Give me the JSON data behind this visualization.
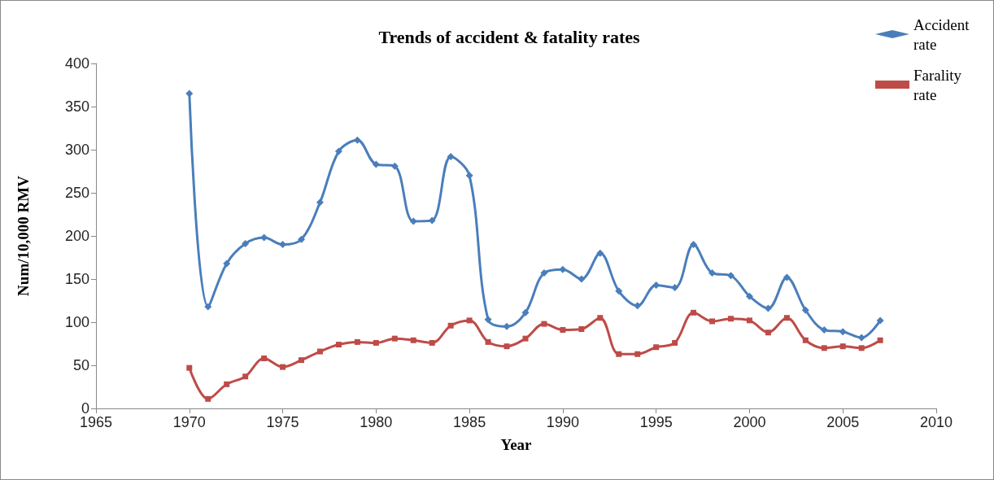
{
  "chart_data": {
    "type": "line",
    "title": "Trends of accident & fatality rates",
    "xlabel": "Year",
    "ylabel": "Num/10,000 RMV",
    "x": [
      1970,
      1971,
      1972,
      1973,
      1974,
      1975,
      1976,
      1977,
      1978,
      1979,
      1980,
      1981,
      1982,
      1983,
      1984,
      1985,
      1986,
      1987,
      1988,
      1989,
      1990,
      1991,
      1992,
      1993,
      1994,
      1995,
      1996,
      1997,
      1998,
      1999,
      2000,
      2001,
      2002,
      2003,
      2004,
      2005,
      2006,
      2007
    ],
    "series": [
      {
        "name": "Accident rate",
        "color": "#4a7ebb",
        "marker": "diamond",
        "values": [
          365,
          118,
          168,
          191,
          198,
          190,
          196,
          239,
          298,
          311,
          283,
          281,
          217,
          218,
          292,
          270,
          103,
          95,
          111,
          157,
          161,
          150,
          180,
          136,
          119,
          143,
          140,
          190,
          157,
          154,
          130,
          116,
          152,
          114,
          91,
          89,
          82,
          102
        ]
      },
      {
        "name": "Farality rate",
        "color": "#be4b48",
        "marker": "square",
        "values": [
          47,
          11,
          28,
          37,
          58,
          48,
          56,
          66,
          74,
          77,
          76,
          81,
          79,
          76,
          96,
          102,
          77,
          72,
          81,
          98,
          91,
          92,
          105,
          63,
          63,
          71,
          76,
          111,
          101,
          104,
          102,
          88,
          105,
          79,
          70,
          72,
          70,
          79
        ]
      }
    ],
    "xlim": [
      1965,
      2010
    ],
    "xticks": [
      1965,
      1970,
      1975,
      1980,
      1985,
      1990,
      1995,
      2000,
      2005,
      2010
    ],
    "ylim": [
      0,
      400
    ],
    "yticks": [
      0,
      50,
      100,
      150,
      200,
      250,
      300,
      350,
      400
    ],
    "grid": false,
    "legend": "top right",
    "line_style": "solid"
  }
}
